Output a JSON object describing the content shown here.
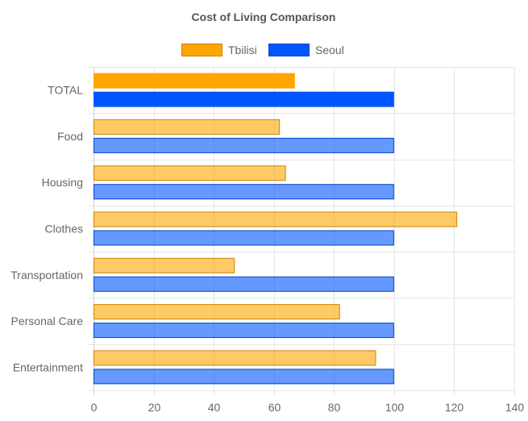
{
  "chart_data": {
    "type": "bar",
    "orientation": "horizontal",
    "title": "Cost of Living Comparison",
    "categories": [
      "TOTAL",
      "Food",
      "Housing",
      "Clothes",
      "Transportation",
      "Personal Care",
      "Entertainment"
    ],
    "series": [
      {
        "name": "Tbilisi",
        "values": [
          67,
          62,
          64,
          121,
          47,
          82,
          94
        ],
        "color": "#FFA500"
      },
      {
        "name": "Seoul",
        "values": [
          100,
          100,
          100,
          100,
          100,
          100,
          100
        ],
        "color": "#0055FF"
      }
    ],
    "xlim": [
      0,
      140
    ],
    "xticks": [
      0,
      20,
      40,
      60,
      80,
      100,
      120,
      140
    ],
    "grid": true,
    "legend_position": "top-center",
    "first_category_opaque": true
  }
}
